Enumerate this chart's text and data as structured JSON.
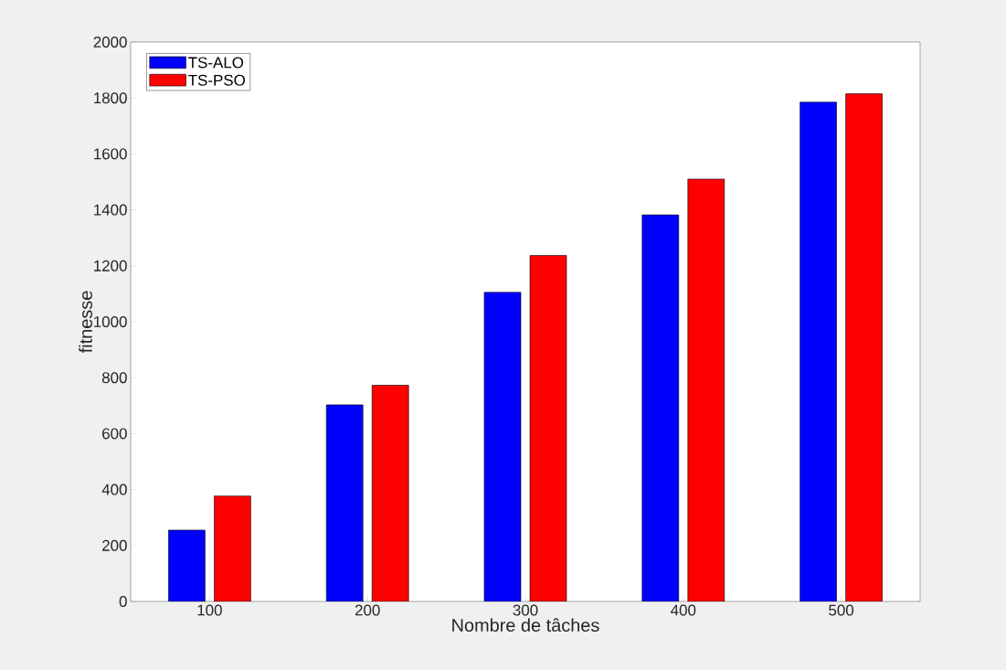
{
  "chart_data": {
    "type": "bar",
    "xlabel": "Nombre de tâches",
    "ylabel": "fitnesse",
    "categories": [
      "100",
      "200",
      "300",
      "400",
      "500"
    ],
    "series": [
      {
        "name": "TS-ALO",
        "color": "#0000ff",
        "values": [
          255,
          703,
          1105,
          1382,
          1785
        ]
      },
      {
        "name": "TS-PSO",
        "color": "#ff0000",
        "values": [
          377,
          773,
          1237,
          1510,
          1815
        ]
      }
    ],
    "ylim": [
      0,
      2000
    ],
    "yticks": [
      0,
      200,
      400,
      600,
      800,
      1000,
      1200,
      1400,
      1600,
      1800,
      2000
    ],
    "grid": false,
    "legend": "top left"
  }
}
